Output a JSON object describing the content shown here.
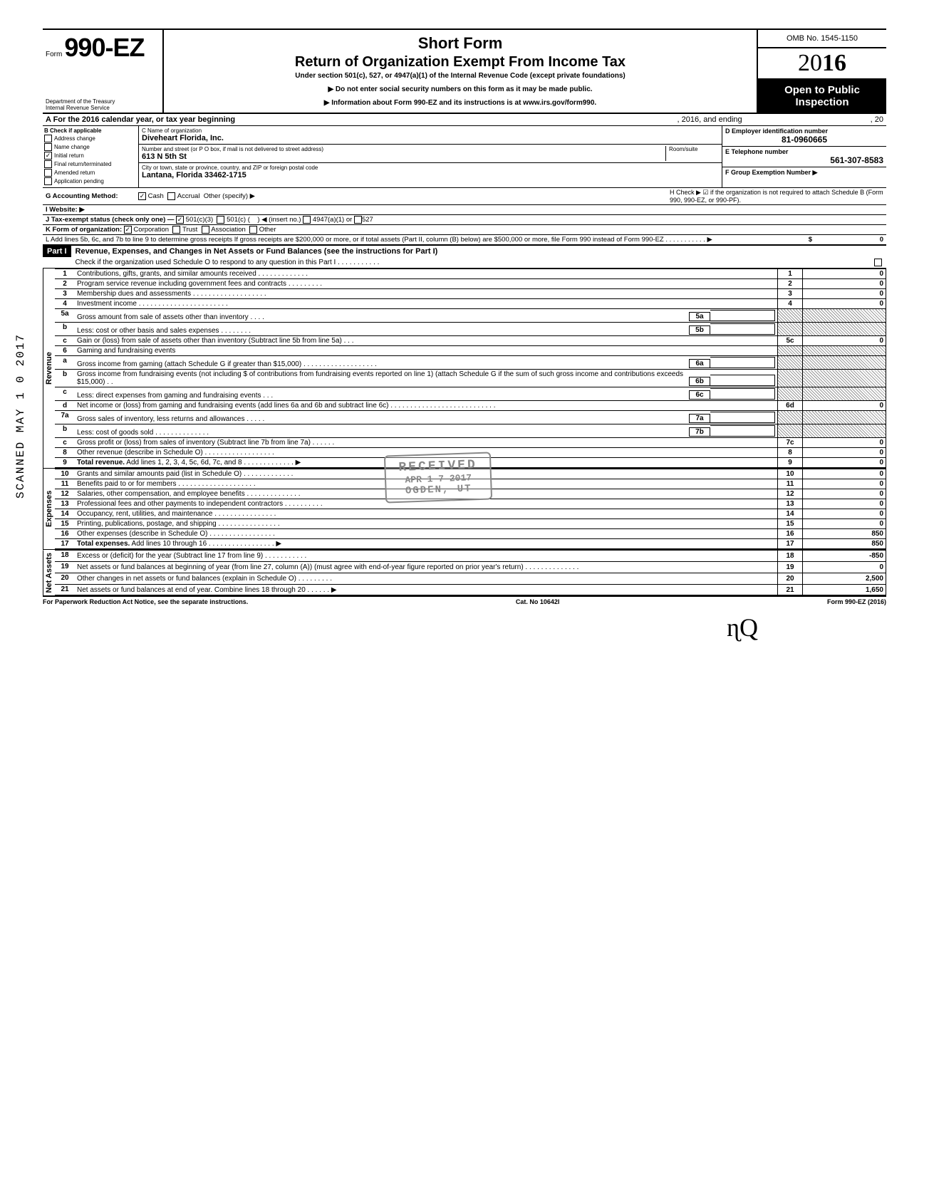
{
  "header": {
    "form_prefix": "Form",
    "form_number": "990-EZ",
    "short_form": "Short Form",
    "title": "Return of Organization Exempt From Income Tax",
    "subtitle": "Under section 501(c), 527, or 4947(a)(1) of the Internal Revenue Code (except private foundations)",
    "warn1": "▶ Do not enter social security numbers on this form as it may be made public.",
    "warn2": "▶ Information about Form 990-EZ and its instructions is at www.irs.gov/form990.",
    "dept": "Department of the Treasury\nInternal Revenue Service",
    "omb": "OMB No. 1545-1150",
    "year_light": "20",
    "year_bold": "16",
    "open": "Open to Public Inspection"
  },
  "rowA": {
    "label": "A  For the 2016 calendar year, or tax year beginning",
    "mid": ", 2016, and ending",
    "end": ", 20"
  },
  "colB": {
    "heading": "B  Check if applicable",
    "items": [
      "Address change",
      "Name change",
      "Initial return",
      "Final return/terminated",
      "Amended return",
      "Application pending"
    ],
    "checked_index": 2
  },
  "colC": {
    "name_label": "C  Name of organization",
    "name": "Diveheart Florida, Inc.",
    "street_label": "Number and street (or P O  box, if mail is not delivered to street address)",
    "room_label": "Room/suite",
    "street": "613 N 5th St",
    "city_label": "City or town, state or province, country, and ZIP or foreign postal code",
    "city": "Lantana, Florida 33462-1715"
  },
  "colD": {
    "d_label": "D Employer identification number",
    "d_val": "81-0960665",
    "e_label": "E  Telephone number",
    "e_val": "561-307-8583",
    "f_label": "F  Group Exemption Number ▶"
  },
  "rowG": {
    "g": "G  Accounting Method:",
    "cash": "Cash",
    "accrual": "Accrual",
    "other": "Other (specify) ▶",
    "h": "H  Check ▶ ☑ if the organization is not required to attach Schedule B (Form 990, 990-EZ, or 990-PF).",
    "i": "I   Website: ▶",
    "j": "J  Tax-exempt status (check only one) —",
    "j1": "501(c)(3)",
    "j2": "501(c) (",
    "j2b": ") ◀ (insert no.)",
    "j3": "4947(a)(1) or",
    "j4": "527",
    "k": "K  Form of organization:",
    "k1": "Corporation",
    "k2": "Trust",
    "k3": "Association",
    "k4": "Other",
    "l": "L  Add lines 5b, 6c, and 7b to line 9 to determine gross receipts  If gross receipts are $200,000 or more, or if total assets (Part II, column (B) below) are $500,000 or more, file Form 990 instead of Form 990-EZ .   .   .   .   .   .   .   .   .   .   .   ▶",
    "l_amt": "0"
  },
  "part1": {
    "label": "Part I",
    "title": "Revenue, Expenses, and Changes in Net Assets or Fund Balances (see the instructions for Part I)",
    "check_line": "Check if the organization used Schedule O to respond to any question in this Part I .   .   .   .   .   .   .   .   .   .   ."
  },
  "sides": {
    "revenue": "Revenue",
    "expenses": "Expenses",
    "netassets": "Net Assets"
  },
  "lines": [
    {
      "n": "1",
      "desc": "Contributions, gifts, grants, and similar amounts received .   .   .   .   .   .   .   .   .   .   .   .   .",
      "num": "1",
      "amt": "0"
    },
    {
      "n": "2",
      "desc": "Program service revenue including government fees and contracts    .   .   .   .   .   .   .   .   .",
      "num": "2",
      "amt": "0"
    },
    {
      "n": "3",
      "desc": "Membership dues and assessments .   .   .   .   .   .   .   .   .   .   .   .   .   .   .   .   .   .   .",
      "num": "3",
      "amt": "0"
    },
    {
      "n": "4",
      "desc": "Investment income    .   .   .   .   .   .   .   .   .   .   .   .   .   .   .   .   .   .   .   .   .   .   .",
      "num": "4",
      "amt": "0"
    },
    {
      "n": "5a",
      "desc": "Gross amount from sale of assets other than inventory    .   .   .   .",
      "sub": "5a"
    },
    {
      "n": "b",
      "desc": "Less: cost or other basis and sales expenses .   .   .   .   .   .   .   .",
      "sub": "5b"
    },
    {
      "n": "c",
      "desc": "Gain or (loss) from sale of assets other than inventory (Subtract line 5b from line 5a) .   .   .",
      "num": "5c",
      "amt": "0"
    },
    {
      "n": "6",
      "desc": "Gaming and fundraising events"
    },
    {
      "n": "a",
      "desc": "Gross income from gaming (attach Schedule G if greater than $15,000) .   .   .   .   .   .   .   .   .   .   .   .   .   .   .   .   .   .   .",
      "sub": "6a"
    },
    {
      "n": "b",
      "desc": "Gross income from fundraising events (not including  $                    of contributions from fundraising events reported on line 1) (attach Schedule G if the sum of such gross income and contributions exceeds $15,000) .   .",
      "sub": "6b"
    },
    {
      "n": "c",
      "desc": "Less: direct expenses from gaming and fundraising events    .   .   .",
      "sub": "6c"
    },
    {
      "n": "d",
      "desc": "Net income or (loss) from gaming and fundraising events (add lines 6a and 6b and subtract line 6c)    .   .   .   .   .   .   .   .   .   .   .   .   .   .   .   .   .   .   .   .   .   .   .   .   .   .   .",
      "num": "6d",
      "amt": "0"
    },
    {
      "n": "7a",
      "desc": "Gross sales of inventory, less returns and allowances .   .   .   .   .",
      "sub": "7a"
    },
    {
      "n": "b",
      "desc": "Less: cost of goods sold    .   .   .   .   .   .   .   .   .   .   .   .   .   .",
      "sub": "7b"
    },
    {
      "n": "c",
      "desc": "Gross profit or (loss) from sales of inventory (Subtract line 7b from line 7a)   .   .   .   .   .   .",
      "num": "7c",
      "amt": "0"
    },
    {
      "n": "8",
      "desc": "Other revenue (describe in Schedule O) .   .   .   .   .   .   .   .   .   .   .   .   .   .   .   .   .   .",
      "num": "8",
      "amt": "0"
    },
    {
      "n": "9",
      "desc": "Total revenue. Add lines 1, 2, 3, 4, 5c, 6d, 7c, and 8   .   .   .   .   .   .   .   .   .   .   .   .   .   ▶",
      "num": "9",
      "amt": "0",
      "bold": true
    }
  ],
  "exp_lines": [
    {
      "n": "10",
      "desc": "Grants and similar amounts paid (list in Schedule O)    .   .   .   .   .   .   .   .   .   .   .   .   .",
      "num": "10",
      "amt": "0"
    },
    {
      "n": "11",
      "desc": "Benefits paid to or for members   .   .   .   .   .   .   .   .   .   .   .   .   .   .   .   .   .   .   .   .",
      "num": "11",
      "amt": "0"
    },
    {
      "n": "12",
      "desc": "Salaries, other compensation, and employee benefits .   .   .   .   .   .   .   .   .   .   .   .   .   .",
      "num": "12",
      "amt": "0"
    },
    {
      "n": "13",
      "desc": "Professional fees and other payments to independent contractors .   .   .   .   .   .   .   .   .   .",
      "num": "13",
      "amt": "0"
    },
    {
      "n": "14",
      "desc": "Occupancy, rent, utilities, and maintenance   .   .   .   .   .   .   .   .   .   .   .   .   .   .   .   .",
      "num": "14",
      "amt": "0"
    },
    {
      "n": "15",
      "desc": "Printing, publications, postage, and shipping .   .   .   .   .   .   .   .   .   .   .   .   .   .   .   .",
      "num": "15",
      "amt": "0"
    },
    {
      "n": "16",
      "desc": "Other expenses (describe in Schedule O)  .   .   .   .   .   .   .   .   .   .   .   .   .   .   .   .   .",
      "num": "16",
      "amt": "850"
    },
    {
      "n": "17",
      "desc": "Total expenses. Add lines 10 through 16 .   .   .   .   .   .   .   .   .   .   .   .   .   .   .   .   .   ▶",
      "num": "17",
      "amt": "850",
      "bold": true
    }
  ],
  "net_lines": [
    {
      "n": "18",
      "desc": "Excess or (deficit) for the year (Subtract line 17 from line 9)   .   .   .   .   .   .   .   .   .   .   .",
      "num": "18",
      "amt": "-850"
    },
    {
      "n": "19",
      "desc": "Net assets or fund balances at beginning of year (from line 27, column (A)) (must agree with end-of-year figure reported on prior year's return)    .   .   .   .   .   .   .   .   .   .   .   .   .   .",
      "num": "19",
      "amt": "0"
    },
    {
      "n": "20",
      "desc": "Other changes in net assets or fund balances (explain in Schedule O) .   .   .   .   .   .   .   .   .",
      "num": "20",
      "amt": "2,500"
    },
    {
      "n": "21",
      "desc": "Net assets or fund balances at end of year. Combine lines 18 through 20    .   .   .   .   .   .   ▶",
      "num": "21",
      "amt": "1,650"
    }
  ],
  "footer": {
    "left": "For Paperwork Reduction Act Notice, see the separate instructions.",
    "mid": "Cat. No 10642I",
    "right": "Form 990-EZ (2016)"
  },
  "stamp": {
    "l1": "RECEIVED",
    "l2": "APR 1 7 2017",
    "l3": "OGDEN, UT"
  },
  "scanned": "SCANNED MAY 1 0 2017",
  "handwrite": "ɳQ"
}
